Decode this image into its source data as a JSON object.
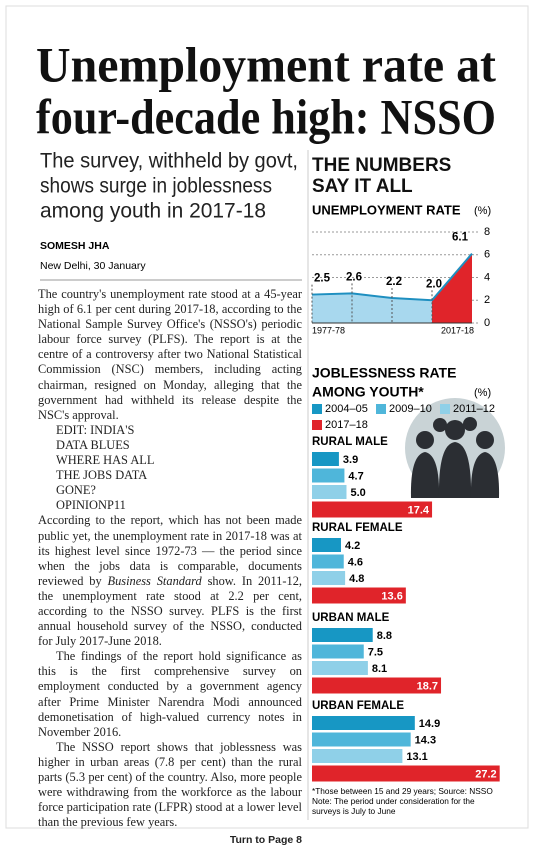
{
  "article": {
    "headline": [
      "Unemployment rate at",
      "four-decade high: NSSO"
    ],
    "subheadline": [
      "The survey, withheld by govt,",
      "shows surge in joblessness",
      "among youth in 2017-18"
    ],
    "byline": "SOMESH JHA",
    "dateline": "New Delhi, 30 January",
    "paragraphs": [
      [
        "The country's unemployment rate stood at a 45-year high of 6.1 per cent during 2017-18, according to the National Sample Survey Office's (NSSO's) periodic labour force survey (PLFS). The report is at the centre of a controversy after two National Statistical Commission (NSC) members, including acting chairman, resigned on Monday, alleging that the government had withheld its release despite the NSC's approval."
      ],
      [
        "According to the report, which has not been made public yet, the unemployment rate in 2017-18 was at its highest level since 1972-73 — the period since when the jobs data is comparable, documents reviewed by ",
        "Business Standard",
        " show. In 2011-12, the unemployment rate stood at 2.2 per cent, according to the NSSO survey. PLFS is the first annual household survey of the NSSO, conducted for July 2017-June 2018."
      ],
      [
        "The findings of the report hold significance as this is the first comprehensive survey on employment conducted by a government agency after Prime Minister Narendra Modi announced demonetisation of high-valued currency notes in November 2016."
      ],
      [
        "The NSSO report shows that joblessness was higher in urban areas (7.8 per cent) than the rural parts (5.3 per cent) of the country. Also, more people were withdrawing from the workforce as the labour force participation rate (LFPR) stood at a lower level than the previous few years."
      ]
    ],
    "sidebar": {
      "edit": [
        "EDIT: INDIA'S",
        "DATA BLUES"
      ],
      "teaser": [
        "WHERE HAS ALL",
        "THE JOBS DATA",
        "GONE?"
      ],
      "section": "OPINION",
      "page": "P11"
    },
    "continued": "Turn to Page 8"
  },
  "panel": {
    "title": [
      "THE NUMBERS",
      "SAY IT ALL"
    ]
  },
  "chart_data": [
    {
      "type": "area",
      "title": "UNEMPLOYMENT RATE",
      "unit": "(%)",
      "categories": [
        "1977-78",
        null,
        null,
        null,
        "2017-18"
      ],
      "values": [
        2.5,
        2.6,
        2.2,
        2.0,
        6.1
      ],
      "value_labels": [
        "2.5",
        "2.6",
        "2.2",
        "2.0",
        "6.1"
      ],
      "color": "#1e8fc0",
      "fill": "#a8d8ee",
      "highlight_color": "#e0242a",
      "ylim": [
        0,
        8
      ],
      "yticks": [
        0,
        2,
        4,
        6,
        8
      ],
      "grid": true
    },
    {
      "type": "hbar",
      "title": [
        "JOBLESSNESS RATE",
        "AMONG YOUTH*"
      ],
      "unit": "(%)",
      "categories": [
        "RURAL MALE",
        "RURAL FEMALE",
        "URBAN MALE",
        "URBAN FEMALE"
      ],
      "series": [
        {
          "name": "2004–05",
          "color": "#1797c4",
          "values": [
            3.9,
            4.2,
            8.8,
            14.9
          ]
        },
        {
          "name": "2009–10",
          "color": "#4fb6da",
          "values": [
            4.7,
            4.6,
            7.5,
            14.3
          ]
        },
        {
          "name": "2011–12",
          "color": "#8fd0e8",
          "values": [
            5.0,
            4.8,
            8.1,
            13.1
          ],
          "value_labels": [
            "5.0",
            "4.8",
            "8.1",
            "13.1"
          ]
        },
        {
          "name": "2017–18",
          "color": "#e0242a",
          "values": [
            17.4,
            13.6,
            18.7,
            27.2
          ]
        }
      ],
      "footnote": [
        "*Those between 15 and 29 years; Source: NSSO",
        "Note: The period under consideration for the",
        "surveys is July to June"
      ]
    }
  ]
}
